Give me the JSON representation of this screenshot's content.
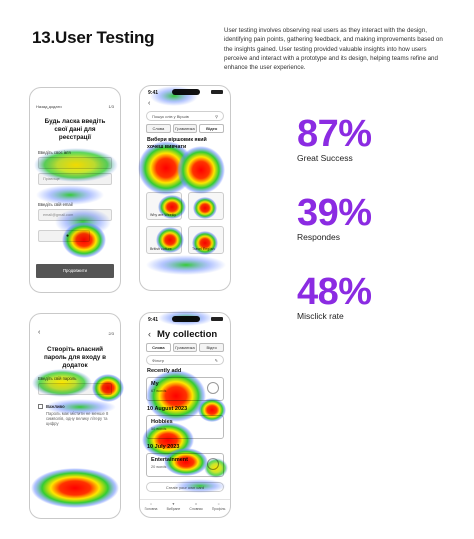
{
  "header": {
    "title": "13.User Testing",
    "description": "User testing  involves observing real users as they interact with the design, identifying pain points, gathering feedback, and making improvements based on the insights gained. User testing provided valuable insights into how users perceive and interact with a prototype and its design, helping teams refine and enhance the user experience."
  },
  "stats": [
    {
      "value": "87%",
      "label": "Great Success"
    },
    {
      "value": "39%",
      "label": "Respondes"
    },
    {
      "value": "48%",
      "label": "Misclick rate"
    }
  ],
  "colors": {
    "accent": "#8b2be2",
    "heat_hot": "#ff0000",
    "heat_warm": "#ffe600",
    "heat_mid": "#33cc33",
    "heat_cool": "#3366ff"
  },
  "phone1": {
    "nav_left": "Назад додати",
    "nav_right": "1/3",
    "title": "Будь ласка введіть свої дані для реєстрації",
    "label_1": "Введіть своє ім'я",
    "input_1": "",
    "input_2": "Прізвище",
    "label_2": "Введіть свій email",
    "input_3": "email@gmail.com",
    "cta": "Продовжити"
  },
  "phone2": {
    "time": "9:41",
    "search_placeholder": "Пошук слів у Віршів",
    "tabs": [
      "Слова",
      "Граматика",
      "Відео"
    ],
    "title": "Вибери віршовик який хочеш вивчати",
    "cards": [
      "Why are Weekly",
      "",
      "British culture",
      "Travel English"
    ]
  },
  "phone3": {
    "nav_right": "2/3",
    "title": "Створіть власний пароль для входу в додаток",
    "label_1": "Введіть свій пароль",
    "checkbox_label": "Важливо",
    "checkbox_text": "Пароль має містити не менше 8 символів, одну велику літеру та цифру"
  },
  "phone4": {
    "time": "9:41",
    "title": "My collection",
    "tabs": [
      "Слова",
      "Граматика",
      "Відео"
    ],
    "filter": "Фільтр",
    "recently_label": "Recently add",
    "card_1": {
      "title": "My",
      "sub": "67 words"
    },
    "date_1": "10 August 2023",
    "card_2": {
      "title": "Hobbies",
      "sub": "50 words"
    },
    "date_2": "10 July 2023",
    "card_3": {
      "title": "Entertainment",
      "sub": "20 words"
    },
    "create_button": "Create your own card",
    "nav": [
      "Головна",
      "Вибране",
      "Словник",
      "Профіль"
    ]
  }
}
